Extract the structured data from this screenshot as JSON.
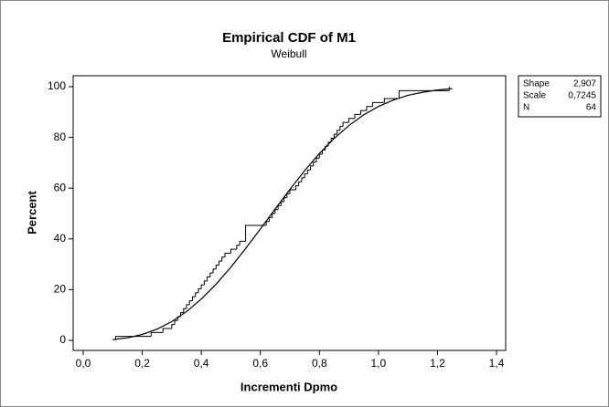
{
  "chart_data": {
    "type": "ecdf",
    "title": "Empirical CDF of M1",
    "subtitle": "Weibull",
    "x_label": "Incrementi Dpmo",
    "y_label": "Percent",
    "xlim": [
      0.0,
      1.4
    ],
    "ylim": [
      0,
      100
    ],
    "xticks": [
      {
        "value": 0.0,
        "label": "0,0"
      },
      {
        "value": 0.2,
        "label": "0,2"
      },
      {
        "value": 0.4,
        "label": "0,4"
      },
      {
        "value": 0.6,
        "label": "0,6"
      },
      {
        "value": 0.8,
        "label": "0,8"
      },
      {
        "value": 1.0,
        "label": "1,0"
      },
      {
        "value": 1.2,
        "label": "1,2"
      },
      {
        "value": 1.4,
        "label": "1,4"
      }
    ],
    "yticks": [
      0,
      20,
      40,
      60,
      80,
      100
    ],
    "series": [
      {
        "type": "step",
        "color": "#000000",
        "x": [
          0.11,
          0.23,
          0.27,
          0.3,
          0.31,
          0.32,
          0.33,
          0.34,
          0.35,
          0.36,
          0.37,
          0.38,
          0.39,
          0.4,
          0.41,
          0.42,
          0.43,
          0.44,
          0.45,
          0.46,
          0.47,
          0.48,
          0.5,
          0.52,
          0.53,
          0.55,
          0.55,
          0.55,
          0.55,
          0.62,
          0.63,
          0.64,
          0.65,
          0.66,
          0.67,
          0.68,
          0.69,
          0.7,
          0.72,
          0.73,
          0.74,
          0.75,
          0.76,
          0.77,
          0.78,
          0.79,
          0.8,
          0.81,
          0.82,
          0.83,
          0.84,
          0.85,
          0.86,
          0.87,
          0.88,
          0.9,
          0.92,
          0.94,
          0.96,
          0.98,
          1.02,
          1.07,
          1.07,
          1.24
        ],
        "values": [
          1.5625,
          3.125,
          4.6875,
          6.25,
          7.8125,
          9.375,
          10.9375,
          12.5,
          14.0625,
          15.625,
          17.1875,
          18.75,
          20.3125,
          21.875,
          23.4375,
          25,
          26.5625,
          28.125,
          29.6875,
          31.25,
          32.8125,
          34.375,
          35.9375,
          37.5,
          39.0625,
          40.625,
          42.1875,
          43.75,
          45.3125,
          46.875,
          48.4375,
          50,
          51.5625,
          53.125,
          54.6875,
          56.25,
          57.8125,
          59.375,
          60.9375,
          62.5,
          64.0625,
          65.625,
          67.1875,
          68.75,
          70.3125,
          71.875,
          73.4375,
          75,
          76.5625,
          78.125,
          79.6875,
          81.25,
          82.8125,
          84.375,
          85.9375,
          87.5,
          89.0625,
          90.625,
          92.1875,
          93.75,
          95.3125,
          96.875,
          98.4375,
          100
        ]
      },
      {
        "type": "line",
        "color": "#000000",
        "x": [
          0.1,
          0.15,
          0.2,
          0.25,
          0.3,
          0.35,
          0.4,
          0.45,
          0.5,
          0.55,
          0.6,
          0.65,
          0.7,
          0.75,
          0.8,
          0.85,
          0.9,
          0.95,
          1.0,
          1.05,
          1.1,
          1.15,
          1.2,
          1.25
        ],
        "values": [
          0.32,
          1.02,
          2.34,
          4.43,
          7.41,
          11.35,
          16.29,
          22.14,
          28.83,
          36.18,
          43.9,
          51.8,
          59.5,
          66.9,
          73.7,
          79.6,
          84.7,
          88.9,
          92.2,
          94.7,
          96.6,
          97.8,
          98.7,
          99.24
        ]
      }
    ],
    "stats": [
      {
        "label": "Shape",
        "value": "2,907"
      },
      {
        "label": "Scale",
        "value": "0,7245"
      },
      {
        "label": "N",
        "value": "64"
      }
    ]
  }
}
